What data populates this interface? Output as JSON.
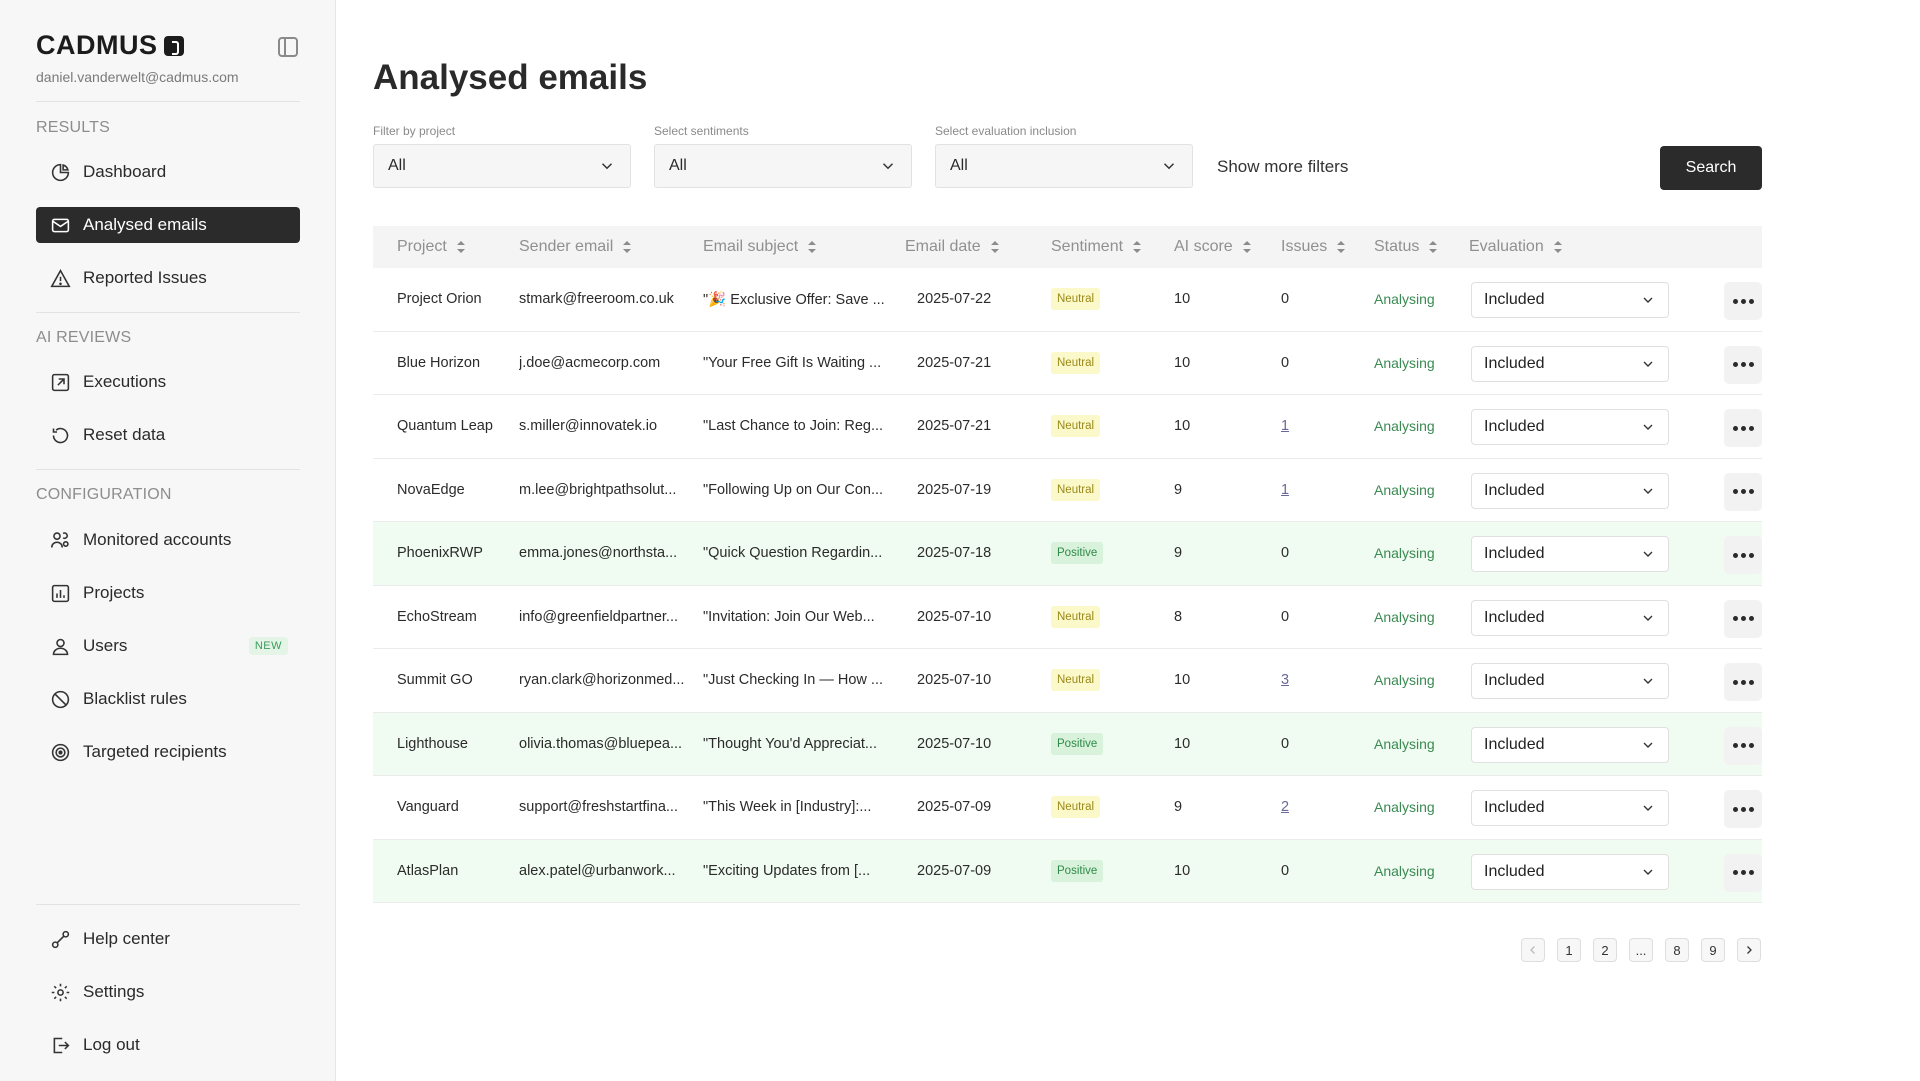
{
  "brand": {
    "name": "CADMUS",
    "user_email": "daniel.vanderwelt@cadmus.com"
  },
  "sidebar": {
    "sections": {
      "results": "RESULTS",
      "ai_reviews": "AI REVIEWS",
      "configuration": "CONFIGURATION"
    },
    "items": {
      "dashboard": "Dashboard",
      "analysed_emails": "Analysed emails",
      "reported_issues": "Reported Issues",
      "executions": "Executions",
      "reset_data": "Reset data",
      "monitored_accounts": "Monitored accounts",
      "projects": "Projects",
      "users": "Users",
      "users_badge": "NEW",
      "blacklist_rules": "Blacklist rules",
      "targeted_recipients": "Targeted recipients",
      "help_center": "Help center",
      "settings": "Settings",
      "log_out": "Log out"
    },
    "icons": [
      "pie-chart-icon",
      "mail-icon",
      "warning-triangle-icon",
      "external-link-icon",
      "reset-icon",
      "users-gear-icon",
      "bar-chart-icon",
      "user-icon",
      "ban-icon",
      "target-icon",
      "link-icon",
      "gear-icon",
      "logout-icon"
    ]
  },
  "page": {
    "title": "Analysed emails",
    "filters": [
      {
        "label": "Filter by project",
        "value": "All"
      },
      {
        "label": "Select sentiments",
        "value": "All"
      },
      {
        "label": "Select evaluation inclusion",
        "value": "All"
      }
    ],
    "more_filters": "Show more filters",
    "search_label": "Search"
  },
  "table": {
    "columns": [
      "Project",
      "Sender email",
      "Email subject",
      "Email date",
      "Sentiment",
      "AI score",
      "Issues",
      "Status",
      "Evaluation"
    ],
    "rows": [
      {
        "project": "Project Orion",
        "sender": "stmark@freeroom.co.uk",
        "subject": "\"🎉 Exclusive Offer: Save ...",
        "date": "2025-07-22",
        "sentiment": "Neutral",
        "score": "10",
        "issues": "0",
        "issues_link": false,
        "status": "Analysing",
        "evaluation": "Included"
      },
      {
        "project": "Blue Horizon",
        "sender": "j.doe@acmecorp.com",
        "subject": "\"Your Free Gift Is Waiting ...",
        "date": "2025-07-21",
        "sentiment": "Neutral",
        "score": "10",
        "issues": "0",
        "issues_link": false,
        "status": "Analysing",
        "evaluation": "Included"
      },
      {
        "project": "Quantum Leap",
        "sender": "s.miller@innovatek.io",
        "subject": "\"Last Chance to Join: Reg...",
        "date": "2025-07-21",
        "sentiment": "Neutral",
        "score": "10",
        "issues": "1",
        "issues_link": true,
        "status": "Analysing",
        "evaluation": "Included"
      },
      {
        "project": "NovaEdge",
        "sender": "m.lee@brightpathsolut...",
        "subject": "\"Following Up on Our Con...",
        "date": "2025-07-19",
        "sentiment": "Neutral",
        "score": "9",
        "issues": "1",
        "issues_link": true,
        "status": "Analysing",
        "evaluation": "Included"
      },
      {
        "project": "PhoenixRWP",
        "sender": "emma.jones@northsta...",
        "subject": "\"Quick Question Regardin...",
        "date": "2025-07-18",
        "sentiment": "Positive",
        "score": "9",
        "issues": "0",
        "issues_link": false,
        "status": "Analysing",
        "evaluation": "Included"
      },
      {
        "project": "EchoStream",
        "sender": "info@greenfieldpartner...",
        "subject": "\"Invitation: Join Our Web...",
        "date": "2025-07-10",
        "sentiment": "Neutral",
        "score": "8",
        "issues": "0",
        "issues_link": false,
        "status": "Analysing",
        "evaluation": "Included"
      },
      {
        "project": "Summit GO",
        "sender": "ryan.clark@horizonmed...",
        "subject": "\"Just Checking In — How ...",
        "date": "2025-07-10",
        "sentiment": "Neutral",
        "score": "10",
        "issues": "3",
        "issues_link": true,
        "status": "Analysing",
        "evaluation": "Included"
      },
      {
        "project": "Lighthouse",
        "sender": "olivia.thomas@bluepea...",
        "subject": "\"Thought You'd Appreciat...",
        "date": "2025-07-10",
        "sentiment": "Positive",
        "score": "10",
        "issues": "0",
        "issues_link": false,
        "status": "Analysing",
        "evaluation": "Included"
      },
      {
        "project": "Vanguard",
        "sender": "support@freshstartfina...",
        "subject": "\"This Week in [Industry]:...",
        "date": "2025-07-09",
        "sentiment": "Neutral",
        "score": "9",
        "issues": "2",
        "issues_link": true,
        "status": "Analysing",
        "evaluation": "Included"
      },
      {
        "project": "AtlasPlan",
        "sender": "alex.patel@urbanwork...",
        "subject": "\"Exciting Updates from [...",
        "date": "2025-07-09",
        "sentiment": "Positive",
        "score": "10",
        "issues": "0",
        "issues_link": false,
        "status": "Analysing",
        "evaluation": "Included"
      }
    ]
  },
  "pagination": {
    "pages": [
      "1",
      "2",
      "...",
      "8",
      "9"
    ]
  },
  "colors": {
    "accent_dark": "#2b2b2b",
    "positive_row": "#f0fbf1",
    "neutral_badge": "#fbf8c9",
    "positive_badge": "#d8f2dc",
    "status_green": "#3a8a52"
  }
}
